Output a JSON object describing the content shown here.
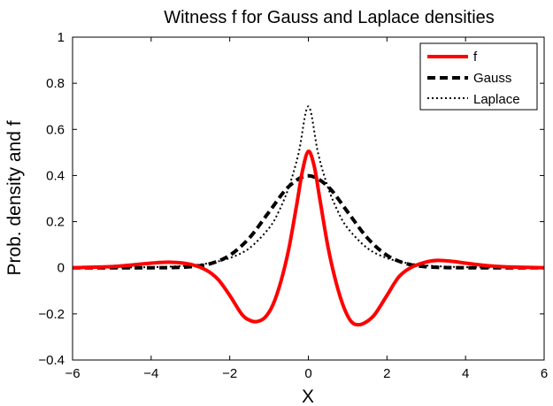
{
  "chart_data": {
    "type": "line",
    "title": "Witness f for Gauss and Laplace densities",
    "xlabel": "X",
    "ylabel": "Prob. density and f",
    "xlim": [
      -6,
      6
    ],
    "ylim": [
      -0.4,
      1
    ],
    "xticks": [
      "−6",
      "−4",
      "−2",
      "0",
      "2",
      "4",
      "6"
    ],
    "yticks": [
      "−0.4",
      "−0.2",
      "0",
      "0.2",
      "0.4",
      "0.6",
      "0.8",
      "1"
    ],
    "legend_position": "top-right",
    "grid": false,
    "series": [
      {
        "name": "f",
        "color": "#ff0000",
        "style": "solid",
        "x": [
          -6,
          -5,
          -4.5,
          -4,
          -3.5,
          -3,
          -2.6,
          -2.3,
          -2,
          -1.7,
          -1.5,
          -1.3,
          -1.1,
          -0.9,
          -0.7,
          -0.5,
          -0.3,
          -0.15,
          0,
          0.15,
          0.3,
          0.5,
          0.7,
          0.9,
          1.1,
          1.3,
          1.5,
          1.7,
          2,
          2.3,
          2.6,
          3,
          3.3,
          3.7,
          4,
          4.5,
          5,
          6
        ],
        "y": [
          0,
          0.005,
          0.012,
          0.02,
          0.024,
          0.015,
          -0.01,
          -0.05,
          -0.12,
          -0.2,
          -0.227,
          -0.233,
          -0.215,
          -0.16,
          -0.06,
          0.08,
          0.27,
          0.42,
          0.505,
          0.44,
          0.29,
          0.09,
          -0.06,
          -0.17,
          -0.235,
          -0.247,
          -0.232,
          -0.2,
          -0.12,
          -0.04,
          0.0,
          0.025,
          0.032,
          0.027,
          0.02,
          0.01,
          0.004,
          0
        ]
      },
      {
        "name": "Gauss",
        "color": "#000000",
        "style": "dashed",
        "x": [
          -6,
          -5,
          -4,
          -3.5,
          -3,
          -2.5,
          -2,
          -1.5,
          -1,
          -0.5,
          0,
          0.5,
          1,
          1.5,
          2,
          2.5,
          3,
          3.5,
          4,
          5,
          6
        ],
        "y": [
          0,
          0,
          0.0001,
          0.0009,
          0.0044,
          0.0175,
          0.054,
          0.1295,
          0.242,
          0.352,
          0.399,
          0.352,
          0.242,
          0.1295,
          0.054,
          0.0175,
          0.0044,
          0.0009,
          0.0001,
          0,
          0
        ]
      },
      {
        "name": "Laplace",
        "color": "#000000",
        "style": "dotted",
        "x": [
          -6,
          -5,
          -4,
          -3.5,
          -3,
          -2.5,
          -2,
          -1.5,
          -1,
          -0.75,
          -0.5,
          -0.25,
          0,
          0.25,
          0.5,
          0.75,
          1,
          1.5,
          2,
          2.5,
          3,
          3.5,
          4,
          5,
          6
        ],
        "y": [
          0.0001,
          0.0006,
          0.0025,
          0.005,
          0.01,
          0.0206,
          0.042,
          0.085,
          0.172,
          0.245,
          0.348,
          0.495,
          0.7,
          0.495,
          0.348,
          0.245,
          0.172,
          0.085,
          0.042,
          0.0206,
          0.01,
          0.005,
          0.0025,
          0.0006,
          0.0001
        ]
      }
    ]
  }
}
